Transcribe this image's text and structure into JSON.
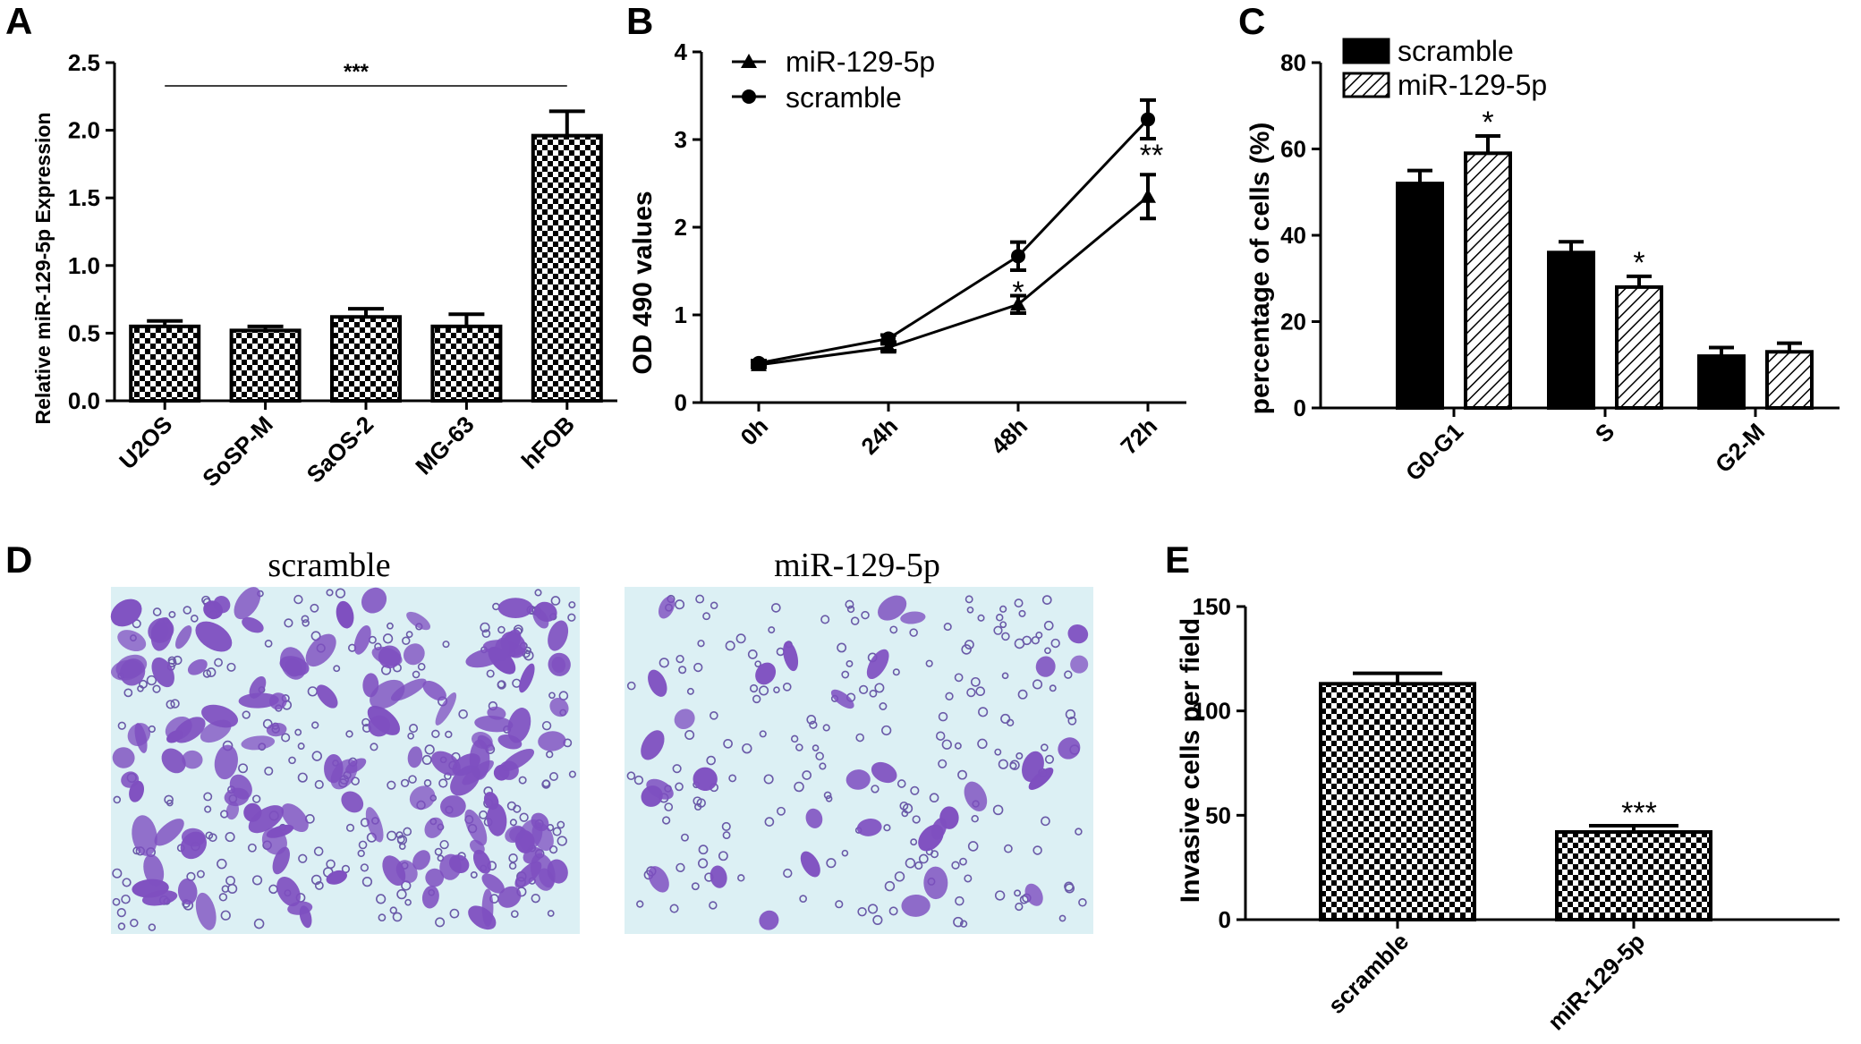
{
  "panel_labels": {
    "A": "A",
    "B": "B",
    "C": "C",
    "D": "D",
    "E": "E"
  },
  "chart_data": [
    {
      "panel": "A",
      "type": "bar",
      "categories": [
        "U2OS",
        "SoSP-M",
        "SaOS-2",
        "MG-63",
        "hFOB"
      ],
      "values": [
        0.55,
        0.52,
        0.62,
        0.55,
        1.96
      ],
      "errors": [
        0.04,
        0.03,
        0.06,
        0.09,
        0.18
      ],
      "ylabel": "Relative miR-129-5p Expression",
      "ylim": [
        0,
        2.5
      ],
      "yticks": [
        0.0,
        0.5,
        1.0,
        1.5,
        2.0,
        2.5
      ],
      "ytick_labels": [
        "0.0",
        "0.5",
        "1.0",
        "1.5",
        "2.0",
        "2.5"
      ],
      "annotation": "***",
      "fill": "checkerboard"
    },
    {
      "panel": "B",
      "type": "line",
      "x": [
        "0h",
        "24h",
        "48h",
        "72h"
      ],
      "series": [
        {
          "name": "miR-129-5p",
          "marker": "triangle",
          "values": [
            0.43,
            0.63,
            1.12,
            2.35
          ],
          "errors": [
            0.03,
            0.04,
            0.1,
            0.25
          ]
        },
        {
          "name": "scramble",
          "marker": "circle",
          "values": [
            0.45,
            0.73,
            1.67,
            3.23
          ],
          "errors": [
            0.03,
            0.04,
            0.16,
            0.22
          ]
        }
      ],
      "ylabel": "OD 490 values",
      "ylim": [
        0,
        4
      ],
      "yticks": [
        0,
        1,
        2,
        3,
        4
      ],
      "ytick_labels": [
        "0",
        "1",
        "2",
        "3",
        "4"
      ],
      "annotations": [
        {
          "x": "48h",
          "text": "*"
        },
        {
          "x": "72h",
          "text": "**"
        }
      ],
      "legend": "top-left"
    },
    {
      "panel": "C",
      "type": "bar",
      "categories": [
        "G0-G1",
        "S",
        "G2-M"
      ],
      "series": [
        {
          "name": "scramble",
          "fill": "black",
          "values": [
            52,
            36,
            12
          ],
          "errors": [
            3,
            2.5,
            2
          ]
        },
        {
          "name": "miR-129-5p",
          "fill": "hatched",
          "values": [
            59,
            28,
            13
          ],
          "errors": [
            4,
            2.5,
            2
          ]
        }
      ],
      "ylabel": "percentage of cells (%)",
      "ylim": [
        0,
        80
      ],
      "yticks": [
        0,
        20,
        40,
        60,
        80
      ],
      "ytick_labels": [
        "0",
        "20",
        "40",
        "60",
        "80"
      ],
      "annotations": [
        {
          "category": "G0-G1",
          "text": "*"
        },
        {
          "category": "S",
          "text": "*"
        }
      ],
      "legend": "top-left"
    },
    {
      "panel": "E",
      "type": "bar",
      "categories": [
        "scramble",
        "miR-129-5p"
      ],
      "values": [
        113,
        42
      ],
      "errors": [
        5,
        3
      ],
      "ylabel": "Invasive cells per field",
      "ylim": [
        0,
        150
      ],
      "yticks": [
        0,
        50,
        100,
        150
      ],
      "ytick_labels": [
        "0",
        "50",
        "100",
        "150"
      ],
      "annotation": "***",
      "fill": "checkerboard"
    }
  ],
  "micrographs": {
    "left_title": "scramble",
    "right_title": "miR-129-5p",
    "background": "#dcf0f4",
    "cell_color": "#7e4fc0"
  }
}
